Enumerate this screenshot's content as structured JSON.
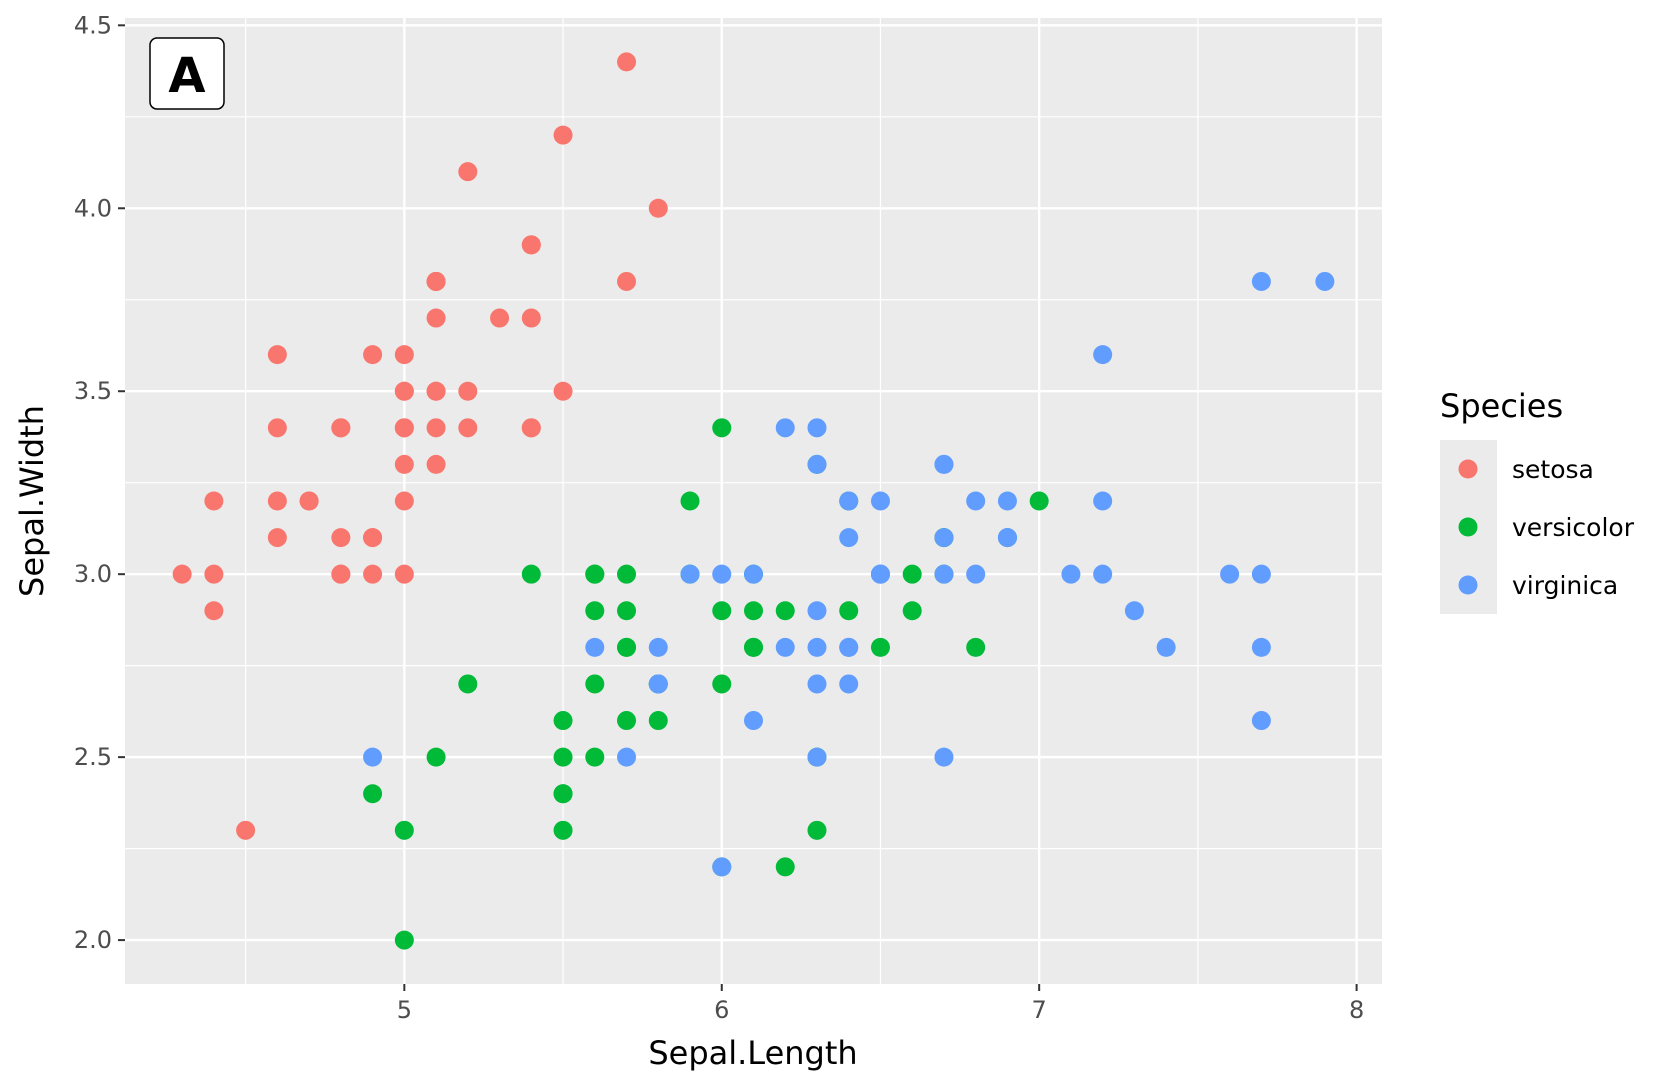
{
  "chart_data": {
    "type": "scatter",
    "tag": "A",
    "xlabel": "Sepal.Length",
    "ylabel": "Sepal.Width",
    "xlim": [
      4.12,
      8.08
    ],
    "ylim": [
      1.88,
      4.52
    ],
    "x_ticks": [
      5,
      6,
      7,
      8
    ],
    "y_ticks": [
      2.0,
      2.5,
      3.0,
      3.5,
      4.0,
      4.5
    ],
    "x_tick_labels": [
      "5",
      "6",
      "7",
      "8"
    ],
    "y_tick_labels": [
      "2.0",
      "2.5",
      "3.0",
      "3.5",
      "4.0",
      "4.5"
    ],
    "grid": true,
    "legend": {
      "title": "Species",
      "placement": "right"
    },
    "series": [
      {
        "name": "setosa",
        "color": "#F8766D",
        "points": [
          [
            5.1,
            3.5
          ],
          [
            4.9,
            3.0
          ],
          [
            4.7,
            3.2
          ],
          [
            4.6,
            3.1
          ],
          [
            5.0,
            3.6
          ],
          [
            5.4,
            3.9
          ],
          [
            4.6,
            3.4
          ],
          [
            5.0,
            3.4
          ],
          [
            4.4,
            2.9
          ],
          [
            4.9,
            3.1
          ],
          [
            5.4,
            3.7
          ],
          [
            4.8,
            3.4
          ],
          [
            4.8,
            3.0
          ],
          [
            4.3,
            3.0
          ],
          [
            5.8,
            4.0
          ],
          [
            5.7,
            4.4
          ],
          [
            5.4,
            3.9
          ],
          [
            5.1,
            3.5
          ],
          [
            5.7,
            3.8
          ],
          [
            5.1,
            3.8
          ],
          [
            5.4,
            3.4
          ],
          [
            5.1,
            3.7
          ],
          [
            4.6,
            3.6
          ],
          [
            5.1,
            3.3
          ],
          [
            4.8,
            3.4
          ],
          [
            5.0,
            3.0
          ],
          [
            5.0,
            3.4
          ],
          [
            5.2,
            3.5
          ],
          [
            5.2,
            3.4
          ],
          [
            4.7,
            3.2
          ],
          [
            4.8,
            3.1
          ],
          [
            5.4,
            3.4
          ],
          [
            5.2,
            4.1
          ],
          [
            5.5,
            4.2
          ],
          [
            4.9,
            3.1
          ],
          [
            5.0,
            3.2
          ],
          [
            5.5,
            3.5
          ],
          [
            4.9,
            3.6
          ],
          [
            4.4,
            3.0
          ],
          [
            5.1,
            3.4
          ],
          [
            5.0,
            3.5
          ],
          [
            4.5,
            2.3
          ],
          [
            4.4,
            3.2
          ],
          [
            5.0,
            3.5
          ],
          [
            5.1,
            3.8
          ],
          [
            4.8,
            3.0
          ],
          [
            5.1,
            3.8
          ],
          [
            4.6,
            3.2
          ],
          [
            5.3,
            3.7
          ],
          [
            5.0,
            3.3
          ]
        ]
      },
      {
        "name": "versicolor",
        "color": "#00BA38",
        "points": [
          [
            7.0,
            3.2
          ],
          [
            6.4,
            3.2
          ],
          [
            6.9,
            3.1
          ],
          [
            5.5,
            2.3
          ],
          [
            6.5,
            2.8
          ],
          [
            5.7,
            2.8
          ],
          [
            6.3,
            3.3
          ],
          [
            4.9,
            2.4
          ],
          [
            6.6,
            2.9
          ],
          [
            5.2,
            2.7
          ],
          [
            5.0,
            2.0
          ],
          [
            5.9,
            3.0
          ],
          [
            6.0,
            2.2
          ],
          [
            6.1,
            2.9
          ],
          [
            5.6,
            2.9
          ],
          [
            6.7,
            3.1
          ],
          [
            5.6,
            3.0
          ],
          [
            5.8,
            2.7
          ],
          [
            6.2,
            2.2
          ],
          [
            5.6,
            2.5
          ],
          [
            5.9,
            3.2
          ],
          [
            6.1,
            2.8
          ],
          [
            6.3,
            2.5
          ],
          [
            6.1,
            2.8
          ],
          [
            6.4,
            2.9
          ],
          [
            6.6,
            3.0
          ],
          [
            6.8,
            2.8
          ],
          [
            6.7,
            3.0
          ],
          [
            6.0,
            2.9
          ],
          [
            5.7,
            2.6
          ],
          [
            5.5,
            2.4
          ],
          [
            5.5,
            2.4
          ],
          [
            5.8,
            2.7
          ],
          [
            6.0,
            2.7
          ],
          [
            5.4,
            3.0
          ],
          [
            6.0,
            3.4
          ],
          [
            6.7,
            3.1
          ],
          [
            6.3,
            2.3
          ],
          [
            5.6,
            3.0
          ],
          [
            5.5,
            2.5
          ],
          [
            5.5,
            2.6
          ],
          [
            6.1,
            3.0
          ],
          [
            5.8,
            2.6
          ],
          [
            5.0,
            2.3
          ],
          [
            5.6,
            2.7
          ],
          [
            5.7,
            3.0
          ],
          [
            5.7,
            2.9
          ],
          [
            6.2,
            2.9
          ],
          [
            5.1,
            2.5
          ],
          [
            5.7,
            2.8
          ]
        ]
      },
      {
        "name": "virginica",
        "color": "#619CFF",
        "points": [
          [
            6.3,
            3.3
          ],
          [
            5.8,
            2.7
          ],
          [
            7.1,
            3.0
          ],
          [
            6.3,
            2.9
          ],
          [
            6.5,
            3.0
          ],
          [
            7.6,
            3.0
          ],
          [
            4.9,
            2.5
          ],
          [
            7.3,
            2.9
          ],
          [
            6.7,
            2.5
          ],
          [
            7.2,
            3.6
          ],
          [
            6.5,
            3.2
          ],
          [
            6.4,
            2.7
          ],
          [
            6.8,
            3.0
          ],
          [
            5.7,
            2.5
          ],
          [
            5.8,
            2.8
          ],
          [
            6.4,
            3.2
          ],
          [
            6.5,
            3.0
          ],
          [
            7.7,
            3.8
          ],
          [
            7.7,
            2.6
          ],
          [
            6.0,
            2.2
          ],
          [
            6.9,
            3.2
          ],
          [
            5.6,
            2.8
          ],
          [
            7.7,
            2.8
          ],
          [
            6.3,
            2.7
          ],
          [
            6.7,
            3.3
          ],
          [
            7.2,
            3.2
          ],
          [
            6.2,
            2.8
          ],
          [
            6.1,
            3.0
          ],
          [
            6.4,
            2.8
          ],
          [
            7.2,
            3.0
          ],
          [
            7.4,
            2.8
          ],
          [
            7.9,
            3.8
          ],
          [
            6.4,
            2.8
          ],
          [
            6.3,
            2.8
          ],
          [
            6.1,
            2.6
          ],
          [
            7.7,
            3.0
          ],
          [
            6.3,
            3.4
          ],
          [
            6.4,
            3.1
          ],
          [
            6.0,
            3.0
          ],
          [
            6.9,
            3.1
          ],
          [
            6.7,
            3.1
          ],
          [
            6.9,
            3.1
          ],
          [
            5.8,
            2.7
          ],
          [
            6.8,
            3.2
          ],
          [
            6.7,
            3.3
          ],
          [
            6.7,
            3.0
          ],
          [
            6.3,
            2.5
          ],
          [
            6.5,
            3.0
          ],
          [
            6.2,
            3.4
          ],
          [
            5.9,
            3.0
          ]
        ]
      }
    ]
  }
}
